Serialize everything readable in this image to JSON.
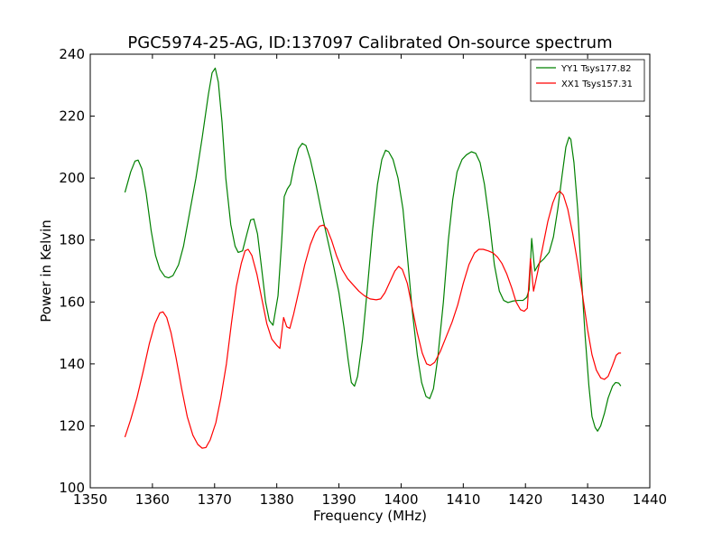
{
  "chart_data": {
    "type": "line",
    "title": "PGC5974-25-AG, ID:137097 Calibrated On-source spectrum",
    "xlabel": "Frequency (MHz)",
    "ylabel": "Power in Kelvin",
    "xlim": [
      1350,
      1440
    ],
    "ylim": [
      100,
      240
    ],
    "xticks": [
      1350,
      1360,
      1370,
      1380,
      1390,
      1400,
      1410,
      1420,
      1430,
      1440
    ],
    "yticks": [
      100,
      120,
      140,
      160,
      180,
      200,
      220,
      240
    ],
    "grid": false,
    "legend_position": "top-right",
    "series": [
      {
        "name": "YY1 Tsys177.82",
        "color": "#008000",
        "points": [
          [
            1355.6,
            195.5
          ],
          [
            1356.5,
            202
          ],
          [
            1357.2,
            205.5
          ],
          [
            1357.7,
            205.8
          ],
          [
            1358.3,
            203
          ],
          [
            1359.0,
            195
          ],
          [
            1359.8,
            183
          ],
          [
            1360.5,
            175
          ],
          [
            1361.2,
            170.5
          ],
          [
            1362.0,
            168.2
          ],
          [
            1362.6,
            167.8
          ],
          [
            1363.3,
            168.5
          ],
          [
            1364.2,
            172
          ],
          [
            1365.0,
            178
          ],
          [
            1366.0,
            189
          ],
          [
            1367.0,
            200
          ],
          [
            1368.0,
            213
          ],
          [
            1369.0,
            227
          ],
          [
            1369.6,
            234
          ],
          [
            1370.1,
            235.5
          ],
          [
            1370.6,
            231
          ],
          [
            1371.2,
            218
          ],
          [
            1371.8,
            200
          ],
          [
            1372.6,
            185
          ],
          [
            1373.3,
            178
          ],
          [
            1373.8,
            176
          ],
          [
            1374.5,
            176.5
          ],
          [
            1375.2,
            182
          ],
          [
            1375.8,
            186.5
          ],
          [
            1376.3,
            186.8
          ],
          [
            1376.9,
            182
          ],
          [
            1377.5,
            172
          ],
          [
            1378.2,
            160
          ],
          [
            1378.8,
            154
          ],
          [
            1379.4,
            152.5
          ],
          [
            1380.2,
            162
          ],
          [
            1380.8,
            180
          ],
          [
            1381.2,
            194
          ],
          [
            1381.7,
            196.5
          ],
          [
            1382.2,
            198
          ],
          [
            1382.8,
            204
          ],
          [
            1383.5,
            209.5
          ],
          [
            1384.1,
            211.2
          ],
          [
            1384.7,
            210.5
          ],
          [
            1385.4,
            206
          ],
          [
            1386.3,
            198
          ],
          [
            1387.3,
            188
          ],
          [
            1388.3,
            179
          ],
          [
            1389.2,
            171
          ],
          [
            1390.0,
            163
          ],
          [
            1390.8,
            152
          ],
          [
            1391.5,
            141
          ],
          [
            1392.0,
            134
          ],
          [
            1392.5,
            132.8
          ],
          [
            1393.0,
            136
          ],
          [
            1393.8,
            148
          ],
          [
            1394.6,
            165
          ],
          [
            1395.4,
            183
          ],
          [
            1396.2,
            198
          ],
          [
            1396.9,
            206
          ],
          [
            1397.5,
            209
          ],
          [
            1398.0,
            208.5
          ],
          [
            1398.7,
            206
          ],
          [
            1399.5,
            200
          ],
          [
            1400.3,
            190
          ],
          [
            1401.0,
            175
          ],
          [
            1401.8,
            157
          ],
          [
            1402.6,
            143
          ],
          [
            1403.3,
            134
          ],
          [
            1404.0,
            129.5
          ],
          [
            1404.6,
            128.8
          ],
          [
            1405.2,
            132
          ],
          [
            1405.9,
            142
          ],
          [
            1406.8,
            160
          ],
          [
            1407.6,
            180
          ],
          [
            1408.3,
            193
          ],
          [
            1409.0,
            202
          ],
          [
            1409.8,
            206
          ],
          [
            1410.5,
            207.5
          ],
          [
            1411.3,
            208.5
          ],
          [
            1412.0,
            208
          ],
          [
            1412.7,
            205
          ],
          [
            1413.4,
            198
          ],
          [
            1414.2,
            186
          ],
          [
            1415.0,
            172
          ],
          [
            1415.8,
            163.5
          ],
          [
            1416.5,
            160.5
          ],
          [
            1417.2,
            159.8
          ],
          [
            1418.0,
            160.3
          ],
          [
            1418.8,
            160.5
          ],
          [
            1419.6,
            160.5
          ],
          [
            1420.2,
            161.5
          ],
          [
            1420.6,
            164
          ],
          [
            1421.0,
            180.5
          ],
          [
            1421.5,
            170
          ],
          [
            1422.2,
            172.5
          ],
          [
            1423.0,
            174
          ],
          [
            1423.8,
            176
          ],
          [
            1424.5,
            181
          ],
          [
            1425.2,
            190
          ],
          [
            1425.9,
            201
          ],
          [
            1426.5,
            210
          ],
          [
            1427.0,
            213.2
          ],
          [
            1427.3,
            212.5
          ],
          [
            1427.8,
            205
          ],
          [
            1428.4,
            190
          ],
          [
            1429.0,
            168
          ],
          [
            1429.6,
            149
          ],
          [
            1430.2,
            133
          ],
          [
            1430.7,
            123
          ],
          [
            1431.2,
            119.5
          ],
          [
            1431.6,
            118.3
          ],
          [
            1432.1,
            120
          ],
          [
            1432.7,
            124
          ],
          [
            1433.3,
            129
          ],
          [
            1434.0,
            132.8
          ],
          [
            1434.5,
            134
          ],
          [
            1435.0,
            133.8
          ],
          [
            1435.3,
            133
          ]
        ]
      },
      {
        "name": "XX1 Tsys157.31",
        "color": "#ff0000",
        "points": [
          [
            1355.6,
            116.5
          ],
          [
            1356.5,
            122
          ],
          [
            1357.5,
            129
          ],
          [
            1358.5,
            137.5
          ],
          [
            1359.5,
            146.5
          ],
          [
            1360.4,
            153
          ],
          [
            1361.2,
            156.5
          ],
          [
            1361.7,
            156.8
          ],
          [
            1362.3,
            155
          ],
          [
            1363.0,
            150
          ],
          [
            1363.8,
            142
          ],
          [
            1364.7,
            132
          ],
          [
            1365.6,
            123
          ],
          [
            1366.5,
            117
          ],
          [
            1367.3,
            114
          ],
          [
            1368.0,
            112.8
          ],
          [
            1368.6,
            113
          ],
          [
            1369.3,
            115.5
          ],
          [
            1370.2,
            121
          ],
          [
            1371.0,
            129
          ],
          [
            1371.9,
            140
          ],
          [
            1372.7,
            153
          ],
          [
            1373.5,
            165
          ],
          [
            1374.3,
            172.5
          ],
          [
            1374.9,
            176.5
          ],
          [
            1375.4,
            177
          ],
          [
            1376.0,
            175
          ],
          [
            1376.8,
            169
          ],
          [
            1377.6,
            161
          ],
          [
            1378.4,
            153
          ],
          [
            1379.2,
            148
          ],
          [
            1380.0,
            146
          ],
          [
            1380.5,
            145
          ],
          [
            1381.1,
            155
          ],
          [
            1381.6,
            152
          ],
          [
            1382.1,
            151.5
          ],
          [
            1382.7,
            156
          ],
          [
            1383.6,
            164
          ],
          [
            1384.5,
            172
          ],
          [
            1385.4,
            178.5
          ],
          [
            1386.2,
            182.5
          ],
          [
            1386.9,
            184.5
          ],
          [
            1387.5,
            184.8
          ],
          [
            1388.1,
            183.5
          ],
          [
            1388.8,
            180
          ],
          [
            1389.6,
            175
          ],
          [
            1390.5,
            170.5
          ],
          [
            1391.4,
            167.5
          ],
          [
            1392.3,
            165.5
          ],
          [
            1393.2,
            163.5
          ],
          [
            1394.1,
            162
          ],
          [
            1395.0,
            161
          ],
          [
            1396.0,
            160.7
          ],
          [
            1396.7,
            161
          ],
          [
            1397.4,
            163
          ],
          [
            1398.2,
            166.5
          ],
          [
            1399.0,
            170
          ],
          [
            1399.6,
            171.5
          ],
          [
            1400.2,
            170.5
          ],
          [
            1401.0,
            166
          ],
          [
            1401.8,
            158
          ],
          [
            1402.6,
            150
          ],
          [
            1403.4,
            143.5
          ],
          [
            1404.1,
            140
          ],
          [
            1404.7,
            139.5
          ],
          [
            1405.4,
            140.5
          ],
          [
            1406.3,
            144
          ],
          [
            1407.2,
            148.5
          ],
          [
            1408.2,
            153.5
          ],
          [
            1409.1,
            159
          ],
          [
            1410.0,
            166
          ],
          [
            1410.9,
            172
          ],
          [
            1411.8,
            175.8
          ],
          [
            1412.5,
            177
          ],
          [
            1413.2,
            177
          ],
          [
            1414.0,
            176.5
          ],
          [
            1414.8,
            175.8
          ],
          [
            1415.5,
            174.5
          ],
          [
            1416.2,
            172.5
          ],
          [
            1417.0,
            169
          ],
          [
            1417.8,
            164.5
          ],
          [
            1418.5,
            160
          ],
          [
            1419.2,
            157.5
          ],
          [
            1419.8,
            157
          ],
          [
            1420.3,
            158
          ],
          [
            1420.8,
            174
          ],
          [
            1421.3,
            163.5
          ],
          [
            1422.0,
            170
          ],
          [
            1422.8,
            178
          ],
          [
            1423.6,
            186
          ],
          [
            1424.4,
            192
          ],
          [
            1425.0,
            195
          ],
          [
            1425.5,
            195.8
          ],
          [
            1426.1,
            194.5
          ],
          [
            1426.8,
            190
          ],
          [
            1427.6,
            182
          ],
          [
            1428.4,
            172.5
          ],
          [
            1429.2,
            162
          ],
          [
            1430.0,
            151
          ],
          [
            1430.7,
            143
          ],
          [
            1431.4,
            138
          ],
          [
            1432.1,
            135.5
          ],
          [
            1432.7,
            135
          ],
          [
            1433.3,
            136
          ],
          [
            1434.0,
            139.5
          ],
          [
            1434.6,
            142.8
          ],
          [
            1435.0,
            143.5
          ],
          [
            1435.3,
            143.5
          ]
        ]
      }
    ]
  }
}
